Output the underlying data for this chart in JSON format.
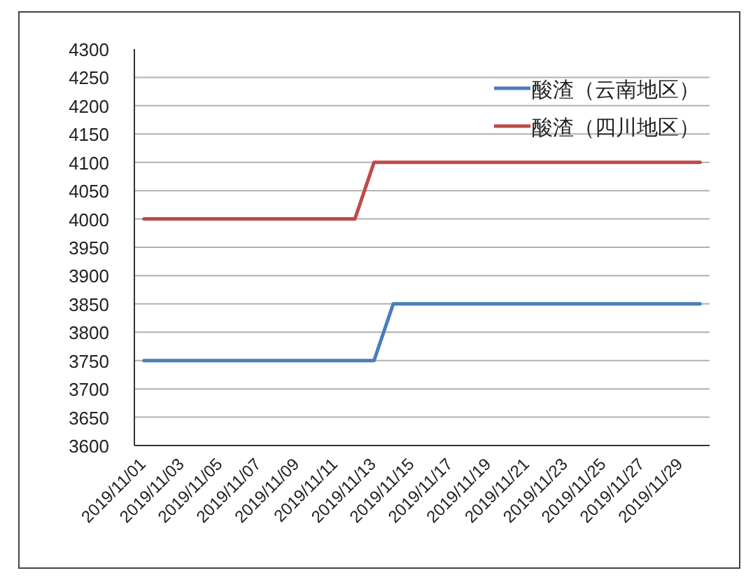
{
  "chart_data": {
    "type": "line",
    "categories": [
      "2019/11/01",
      null,
      "2019/11/03",
      null,
      "2019/11/05",
      null,
      "2019/11/07",
      null,
      "2019/11/09",
      null,
      "2019/11/11",
      null,
      "2019/11/13",
      null,
      "2019/11/15",
      null,
      "2019/11/17",
      null,
      "2019/11/19",
      null,
      "2019/11/21",
      null,
      "2019/11/23",
      null,
      "2019/11/25",
      null,
      "2019/11/27",
      null,
      "2019/11/29",
      null
    ],
    "series": [
      {
        "name": "酸渣（云南地区）",
        "color": "#4a7ebb",
        "values": [
          3750,
          3750,
          3750,
          3750,
          3750,
          3750,
          3750,
          3750,
          3750,
          3750,
          3750,
          3750,
          3750,
          3850,
          3850,
          3850,
          3850,
          3850,
          3850,
          3850,
          3850,
          3850,
          3850,
          3850,
          3850,
          3850,
          3850,
          3850,
          3850,
          3850
        ]
      },
      {
        "name": "酸渣（四川地区）",
        "color": "#be4b48",
        "values": [
          4000,
          4000,
          4000,
          4000,
          4000,
          4000,
          4000,
          4000,
          4000,
          4000,
          4000,
          4000,
          4100,
          4100,
          4100,
          4100,
          4100,
          4100,
          4100,
          4100,
          4100,
          4100,
          4100,
          4100,
          4100,
          4100,
          4100,
          4100,
          4100,
          4100
        ]
      }
    ],
    "ylim": [
      3600,
      4300
    ],
    "yticks": [
      3600,
      3650,
      3700,
      3750,
      3800,
      3850,
      3900,
      3950,
      4000,
      4050,
      4100,
      4150,
      4200,
      4250,
      4300
    ],
    "grid": "y",
    "legend": "top right",
    "marker": "none",
    "line_style": "solid"
  }
}
